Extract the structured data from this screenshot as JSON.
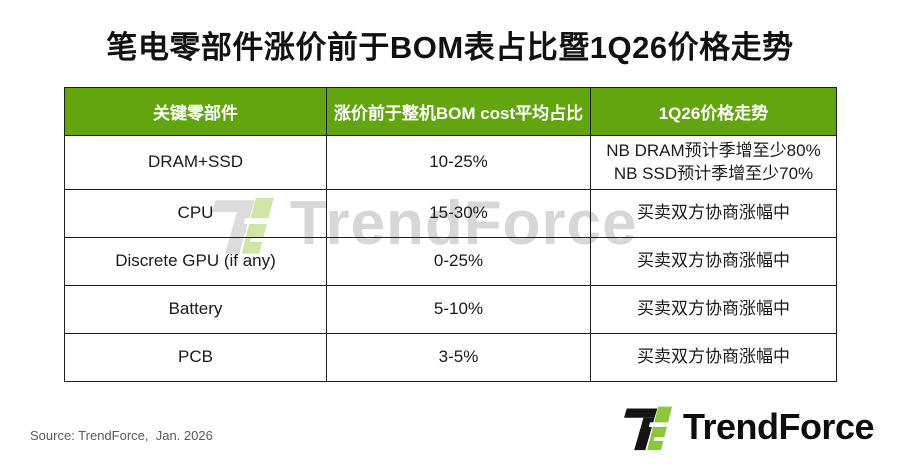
{
  "title": "笔电零部件涨价前于BOM表占比暨1Q26价格走势",
  "chart_data": {
    "type": "table",
    "title": "笔电零部件涨价前于BOM表占比暨1Q26价格走势",
    "columns": [
      "关键零部件",
      "涨价前于整机BOM cost平均占比",
      "1Q26价格走势"
    ],
    "rows": [
      [
        "DRAM+SSD",
        "10-25%",
        "NB DRAM预计季增至少80%\nNB SSD预计季增至少70%"
      ],
      [
        "CPU",
        "15-30%",
        "买卖双方协商涨幅中"
      ],
      [
        "Discrete GPU (if any)",
        "0-25%",
        "买卖双方协商涨幅中"
      ],
      [
        "Battery",
        "5-10%",
        "买卖双方协商涨幅中"
      ],
      [
        "PCB",
        "3-5%",
        "买卖双方协商涨幅中"
      ]
    ],
    "source": "Source: TrendForce,  Jan. 2026"
  },
  "watermark": {
    "text": "TrendForce"
  },
  "footer": {
    "source": "Source: TrendForce,  Jan. 2026",
    "logo_text": "TrendForce"
  },
  "colors": {
    "header_green": "#63a50f",
    "logo_green": "#8cc63f",
    "logo_black": "#141414",
    "watermark_gray": "#d7d7d7",
    "watermark_green": "#cfe6a8",
    "border": "#1f1f1f"
  }
}
